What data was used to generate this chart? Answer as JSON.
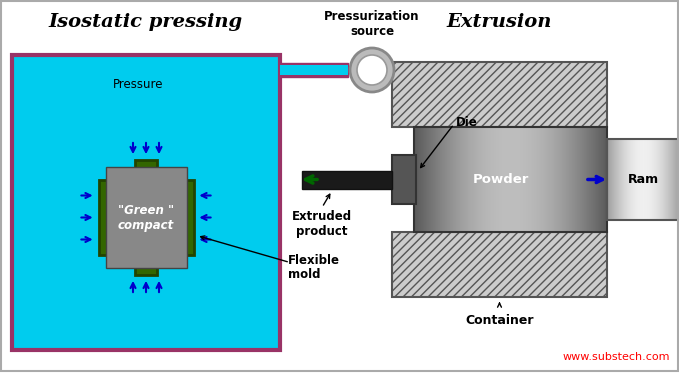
{
  "title_left": "Isostatic pressing",
  "title_right": "Extrusion",
  "label_pressure": "Pressure",
  "label_green_compact": "\"Green \"\ncompact",
  "label_flexible_mold": "Flexible\nmold",
  "label_pressurization": "Pressurization\nsource",
  "label_die": "Die",
  "label_powder": "Powder",
  "label_ram": "Ram",
  "label_extruded": "Extruded\nproduct",
  "label_container": "Container",
  "label_website": "www.substech.com",
  "bg_color": "#ffffff",
  "cyan_bg": "#00ccee",
  "purple_border": "#993366",
  "green_mold": "#336600",
  "gray_compact": "#888888",
  "arrow_blue": "#0000cc",
  "arrow_green": "#006600"
}
